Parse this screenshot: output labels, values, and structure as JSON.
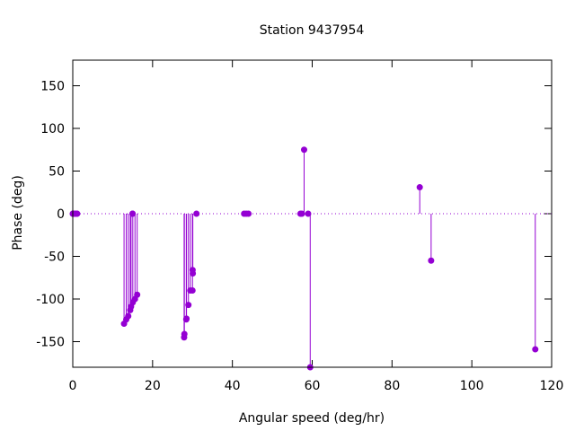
{
  "chart_data": {
    "type": "scatter",
    "title": "Station 9437954",
    "xlabel": "Angular speed (deg/hr)",
    "ylabel": "Phase (deg)",
    "xlim": [
      0,
      120
    ],
    "ylim": [
      -180,
      180
    ],
    "xticks": [
      "0",
      "20",
      "40",
      "60",
      "80",
      "100",
      "120"
    ],
    "yticks": [
      "-150",
      "-100",
      "-50",
      "0",
      "50",
      "100",
      "150"
    ],
    "grid": false,
    "legend": "none",
    "marker_color": "#9400d3",
    "series": [
      {
        "x": [
          0.0,
          0.04,
          0.08,
          0.5,
          0.55,
          1.0,
          1.1,
          12.85,
          13.4,
          13.9,
          14.4,
          14.6,
          14.96,
          15.0,
          15.04,
          15.59,
          16.14,
          27.9,
          27.97,
          28.44,
          28.5,
          28.98,
          29.46,
          30.0,
          30.08,
          30.03,
          31.0,
          42.93,
          43.48,
          44.03,
          57.42,
          57.97,
          58.98,
          86.95,
          57.05,
          89.8,
          115.9
        ],
        "y": [
          0,
          0,
          0,
          0,
          0,
          0,
          0,
          -129,
          -124,
          -120,
          -113,
          -109,
          0,
          0,
          -104,
          -100,
          -95,
          -145,
          -141,
          -124,
          -123,
          -107,
          -90,
          -90,
          -70,
          -66,
          0,
          0,
          0,
          0,
          0,
          75,
          0,
          31,
          0,
          -55,
          -159
        ]
      },
      {
        "x": [
          59.5
        ],
        "y": [
          -180
        ]
      }
    ]
  }
}
